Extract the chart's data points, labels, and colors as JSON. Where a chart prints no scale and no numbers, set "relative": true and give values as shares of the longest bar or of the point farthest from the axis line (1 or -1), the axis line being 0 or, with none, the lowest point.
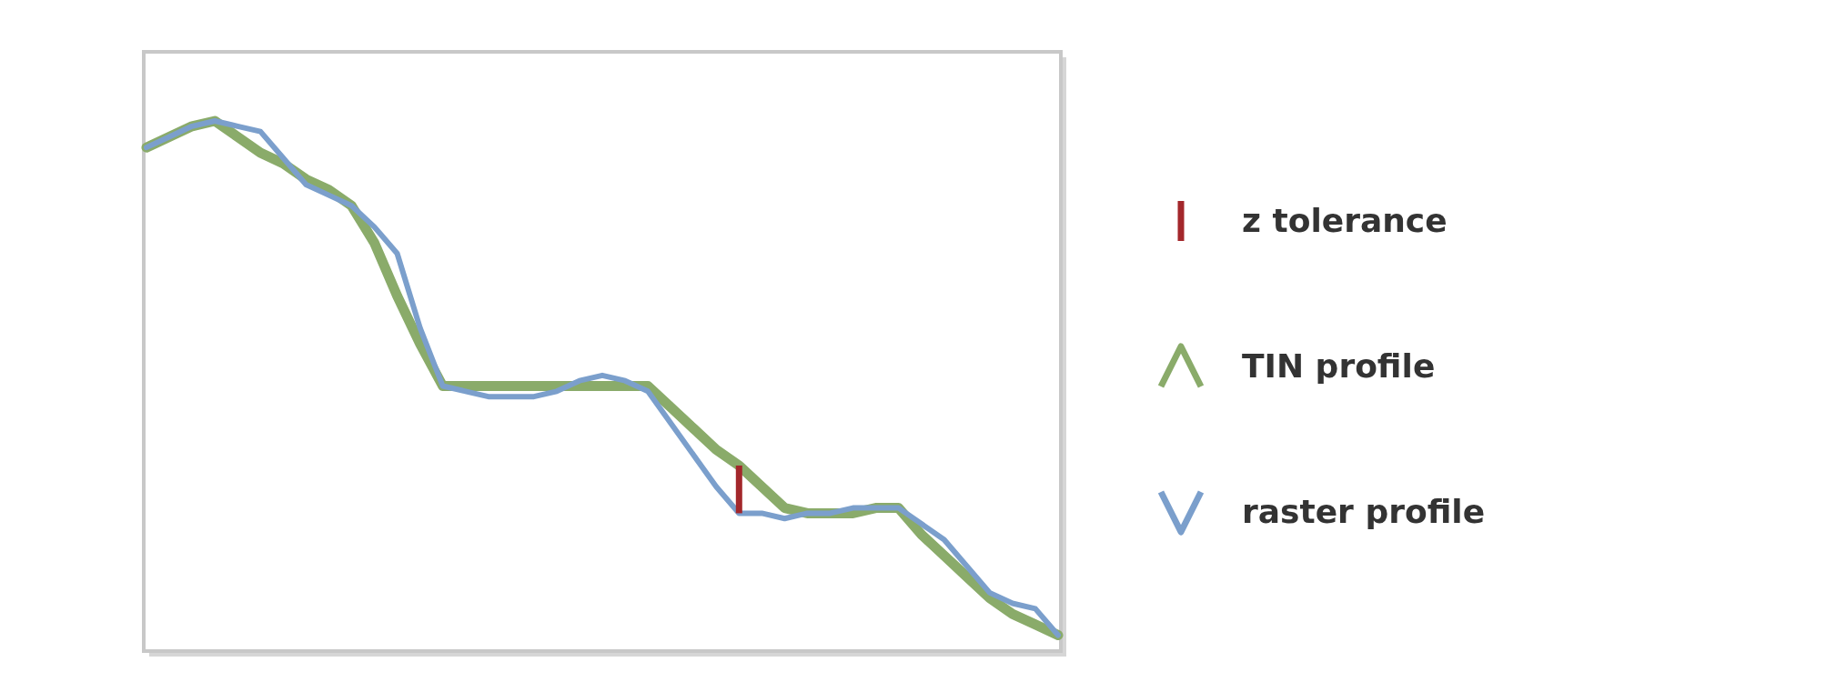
{
  "chart_data": {
    "type": "line",
    "relative": true,
    "legend": "right",
    "line_style": "solid",
    "annotations": [
      "z tolerance"
    ],
    "categories": [
      null,
      null,
      null,
      null,
      null,
      null,
      null,
      null,
      null,
      null,
      null,
      null,
      null,
      null,
      null,
      null,
      null,
      null,
      null,
      null,
      null,
      null,
      null,
      null,
      null,
      null,
      null,
      null,
      null,
      null,
      null,
      null,
      null,
      null,
      null,
      null,
      null,
      null,
      null,
      null,
      null
    ],
    "series": [
      {
        "name": "TIN profile",
        "color": "#8aab6a",
        "values": [
          0.95,
          0.97,
          0.99,
          1,
          0.97,
          0.94,
          0.92,
          0.89,
          0.87,
          0.84,
          0.77,
          0.67,
          0.58,
          0.5,
          0.5,
          0.5,
          0.5,
          0.5,
          0.5,
          0.5,
          0.5,
          0.5,
          0.5,
          0.46,
          0.42,
          0.38,
          0.35,
          0.31,
          0.27,
          0.26,
          0.26,
          0.26,
          0.27,
          0.27,
          0.22,
          0.18,
          0.14,
          0.1,
          0.07,
          0.05,
          0.03
        ]
      },
      {
        "name": "raster profile",
        "color": "#7b9fcc",
        "values": [
          0.95,
          0.97,
          0.99,
          1,
          0.99,
          0.98,
          0.93,
          0.88,
          0.86,
          0.84,
          0.8,
          0.75,
          0.61,
          0.5,
          0.49,
          0.48,
          0.48,
          0.48,
          0.49,
          0.51,
          0.52,
          0.51,
          0.49,
          0.43,
          0.37,
          0.31,
          0.26,
          0.26,
          0.25,
          0.26,
          0.26,
          0.27,
          0.27,
          0.27,
          0.24,
          0.21,
          0.16,
          0.11,
          0.09,
          0.08,
          0.03
        ]
      }
    ]
  }
}
